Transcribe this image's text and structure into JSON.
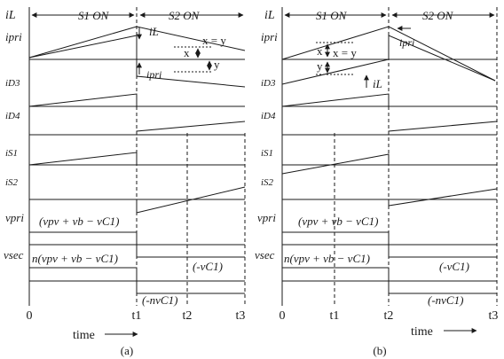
{
  "panels": [
    {
      "id": "a",
      "caption": "(a)",
      "phase1": "S1 ON",
      "phase2": "S2 ON",
      "xy_label": "x = y",
      "x_mark": "x",
      "y_mark": "y",
      "iL_annot": "iL",
      "ipri_annot": "ipri",
      "vpri_expr": "(vpv + vb − vC1)",
      "vsec_expr": "n(vpv + vb − vC1)",
      "neg_vc1": "(-vC1)",
      "neg_nvc1": "(-nvC1)",
      "ticks": [
        "0",
        "t1",
        "t2",
        "t3"
      ],
      "time_label": "time"
    },
    {
      "id": "b",
      "caption": "(b)",
      "phase1": "S1 ON",
      "phase2": "S2 ON",
      "xy_label": "x = y",
      "x_mark": "x",
      "y_mark": "y",
      "iL_annot": "iL",
      "ipri_annot": "ipri",
      "vpri_expr": "(vpv + vb − vC1)",
      "vsec_expr": "n(vpv + vb − vC1)",
      "neg_vc1": "(-vC1)",
      "neg_nvc1": "(-nvC1)",
      "ticks": [
        "0",
        "t1",
        "t2",
        "t3"
      ],
      "time_label": "time"
    }
  ],
  "signal_labels": [
    "iL",
    "ipri",
    "iD3",
    "iD4",
    "iS1",
    "iS2",
    "vpri",
    "vsec"
  ]
}
